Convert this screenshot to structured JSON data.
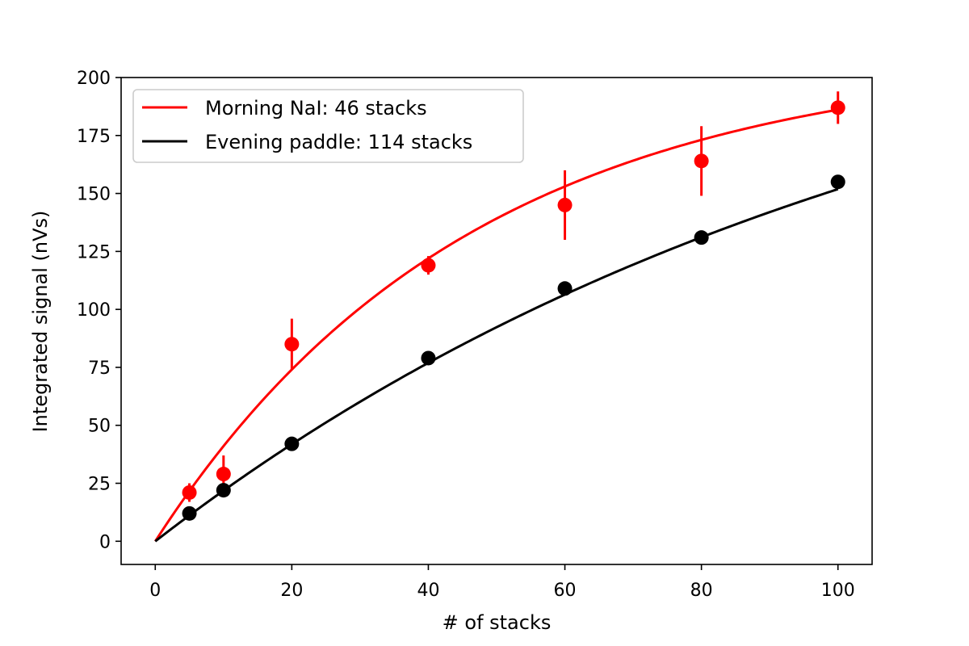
{
  "chart_data": {
    "type": "scatter",
    "title": "",
    "xlabel": "# of stacks",
    "ylabel": "Integrated signal (nVs)",
    "xlim": [
      -5,
      105
    ],
    "ylim": [
      -10,
      200
    ],
    "xticks": [
      0,
      20,
      40,
      60,
      80,
      100
    ],
    "yticks": [
      0,
      25,
      50,
      75,
      100,
      125,
      150,
      175,
      200
    ],
    "grid": false,
    "legend_position": "top-left",
    "series": [
      {
        "name": "Morning NaI: 46 stacks",
        "color": "#ff0000",
        "points": [
          {
            "x": 5,
            "y": 21,
            "err": 4
          },
          {
            "x": 10,
            "y": 29,
            "err": 8
          },
          {
            "x": 20,
            "y": 85,
            "err": 11
          },
          {
            "x": 40,
            "y": 119,
            "err": 4
          },
          {
            "x": 60,
            "y": 145,
            "err": 15
          },
          {
            "x": 80,
            "y": 164,
            "err": 15
          },
          {
            "x": 100,
            "y": 187,
            "err": 7
          }
        ],
        "fit": {
          "amplitude": 210,
          "scale": 46
        }
      },
      {
        "name": "Evening paddle: 114 stacks",
        "color": "#000000",
        "points": [
          {
            "x": 5,
            "y": 12,
            "err": 0
          },
          {
            "x": 10,
            "y": 22,
            "err": 0
          },
          {
            "x": 20,
            "y": 42,
            "err": 0
          },
          {
            "x": 40,
            "y": 79,
            "err": 0
          },
          {
            "x": 60,
            "y": 109,
            "err": 0
          },
          {
            "x": 80,
            "y": 131,
            "err": 0
          },
          {
            "x": 100,
            "y": 155,
            "err": 0
          }
        ],
        "fit": {
          "amplitude": 260,
          "scale": 114
        }
      }
    ]
  }
}
